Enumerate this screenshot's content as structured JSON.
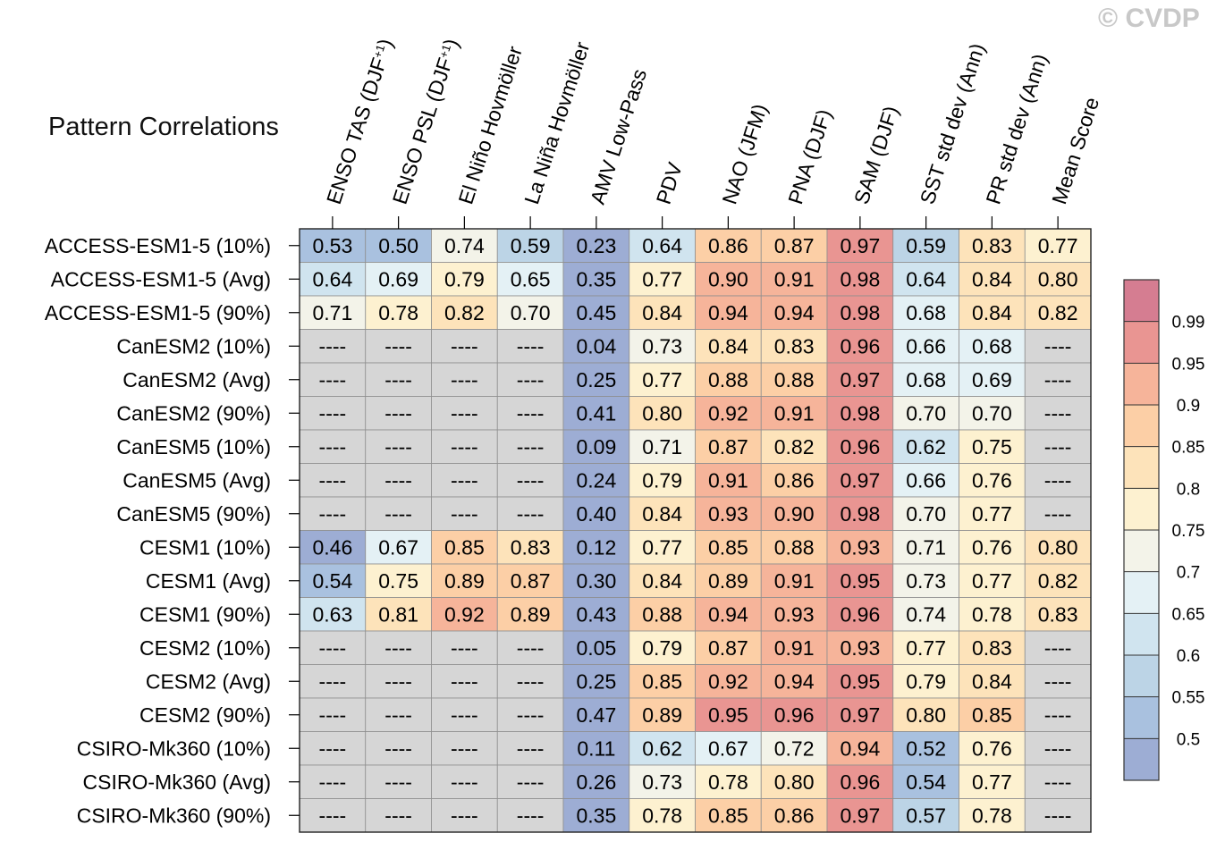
{
  "watermark": "© CVDP",
  "chart_data": {
    "type": "heatmap",
    "title": "Pattern Correlations",
    "columns": [
      {
        "label": "ENSO TAS (DJF",
        "sup": "+1",
        "suffix": ")"
      },
      {
        "label": "ENSO PSL (DJF",
        "sup": "+1",
        "suffix": ")"
      },
      {
        "label": "El Niño Hovmöller"
      },
      {
        "label": "La Niña Hovmöller"
      },
      {
        "label": "AMV Low-Pass"
      },
      {
        "label": "PDV"
      },
      {
        "label": "NAO (JFM)"
      },
      {
        "label": "PNA (DJF)"
      },
      {
        "label": "SAM (DJF)"
      },
      {
        "label": "SST std dev (Ann)"
      },
      {
        "label": "PR std dev (Ann)"
      },
      {
        "label": "Mean Score"
      }
    ],
    "rows": [
      "ACCESS-ESM1-5 (10%)",
      "ACCESS-ESM1-5 (Avg)",
      "ACCESS-ESM1-5 (90%)",
      "CanESM2 (10%)",
      "CanESM2 (Avg)",
      "CanESM2 (90%)",
      "CanESM5 (10%)",
      "CanESM5 (Avg)",
      "CanESM5 (90%)",
      "CESM1 (10%)",
      "CESM1 (Avg)",
      "CESM1 (90%)",
      "CESM2 (10%)",
      "CESM2 (Avg)",
      "CESM2 (90%)",
      "CSIRO-Mk360 (10%)",
      "CSIRO-Mk360 (Avg)",
      "CSIRO-Mk360 (90%)"
    ],
    "missing_label": "----",
    "values": [
      [
        0.53,
        0.5,
        0.74,
        0.59,
        0.23,
        0.64,
        0.86,
        0.87,
        0.97,
        0.59,
        0.83,
        0.77
      ],
      [
        0.64,
        0.69,
        0.79,
        0.65,
        0.35,
        0.77,
        0.9,
        0.91,
        0.98,
        0.64,
        0.84,
        0.8
      ],
      [
        0.71,
        0.78,
        0.82,
        0.7,
        0.45,
        0.84,
        0.94,
        0.94,
        0.98,
        0.68,
        0.84,
        0.82
      ],
      [
        null,
        null,
        null,
        null,
        0.04,
        0.73,
        0.84,
        0.83,
        0.96,
        0.66,
        0.68,
        null
      ],
      [
        null,
        null,
        null,
        null,
        0.25,
        0.77,
        0.88,
        0.88,
        0.97,
        0.68,
        0.69,
        null
      ],
      [
        null,
        null,
        null,
        null,
        0.41,
        0.8,
        0.92,
        0.91,
        0.98,
        0.7,
        0.7,
        null
      ],
      [
        null,
        null,
        null,
        null,
        0.09,
        0.71,
        0.87,
        0.82,
        0.96,
        0.62,
        0.75,
        null
      ],
      [
        null,
        null,
        null,
        null,
        0.24,
        0.79,
        0.91,
        0.86,
        0.97,
        0.66,
        0.76,
        null
      ],
      [
        null,
        null,
        null,
        null,
        0.4,
        0.84,
        0.93,
        0.9,
        0.98,
        0.7,
        0.77,
        null
      ],
      [
        0.46,
        0.67,
        0.85,
        0.83,
        0.12,
        0.77,
        0.85,
        0.88,
        0.93,
        0.71,
        0.76,
        0.8
      ],
      [
        0.54,
        0.75,
        0.89,
        0.87,
        0.3,
        0.84,
        0.89,
        0.91,
        0.95,
        0.73,
        0.77,
        0.82
      ],
      [
        0.63,
        0.81,
        0.92,
        0.89,
        0.43,
        0.88,
        0.94,
        0.93,
        0.96,
        0.74,
        0.78,
        0.83
      ],
      [
        null,
        null,
        null,
        null,
        0.05,
        0.79,
        0.87,
        0.91,
        0.93,
        0.77,
        0.83,
        null
      ],
      [
        null,
        null,
        null,
        null,
        0.25,
        0.85,
        0.92,
        0.94,
        0.95,
        0.79,
        0.84,
        null
      ],
      [
        null,
        null,
        null,
        null,
        0.47,
        0.89,
        0.95,
        0.96,
        0.97,
        0.8,
        0.85,
        null
      ],
      [
        null,
        null,
        null,
        null,
        0.11,
        0.62,
        0.67,
        0.72,
        0.94,
        0.52,
        0.76,
        null
      ],
      [
        null,
        null,
        null,
        null,
        0.26,
        0.73,
        0.78,
        0.8,
        0.96,
        0.54,
        0.77,
        null
      ],
      [
        null,
        null,
        null,
        null,
        0.35,
        0.78,
        0.85,
        0.86,
        0.97,
        0.57,
        0.78,
        null
      ]
    ],
    "colorbar": {
      "levels": [
        0.5,
        0.55,
        0.6,
        0.65,
        0.7,
        0.75,
        0.8,
        0.85,
        0.9,
        0.95,
        0.99
      ],
      "tick_labels": [
        "0.5",
        "0.55",
        "0.6",
        "0.65",
        "0.7",
        "0.75",
        "0.8",
        "0.85",
        "0.9",
        "0.95",
        "0.99"
      ],
      "colors": [
        "#9dadd4",
        "#a9c1df",
        "#bcd4e6",
        "#d0e4ef",
        "#e4f1f5",
        "#f3f3e9",
        "#fdf1d0",
        "#fde3ba",
        "#fccfa6",
        "#f6b49a",
        "#e99592",
        "#d57d91"
      ]
    },
    "missing_color": "#d6d6d6"
  }
}
